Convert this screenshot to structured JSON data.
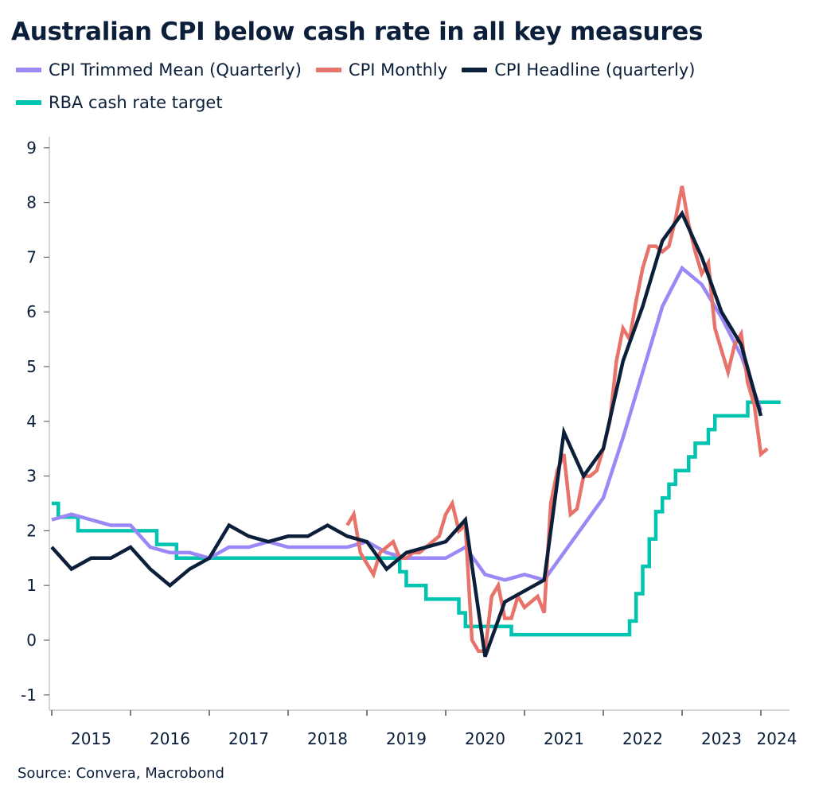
{
  "chart_data": {
    "type": "line",
    "title": "Australian CPI below cash rate in all key measures",
    "source": "Source: Convera, Macrobond",
    "xlabel": "",
    "ylabel": "",
    "ylim": [
      -1,
      9
    ],
    "yticks": [
      "-1",
      "0",
      "1",
      "2",
      "3",
      "4",
      "5",
      "6",
      "7",
      "8",
      "9"
    ],
    "xticks": [
      "2015",
      "2016",
      "2017",
      "2018",
      "2019",
      "2020",
      "2021",
      "2022",
      "2023",
      "2024"
    ],
    "grid": false,
    "legend_position": "top",
    "series": [
      {
        "name": "CPI Trimmed Mean (Quarterly)",
        "color": "#9b87f5",
        "points": [
          [
            "2014-12",
            2.2
          ],
          [
            "2015-03",
            2.3
          ],
          [
            "2015-06",
            2.2
          ],
          [
            "2015-09",
            2.1
          ],
          [
            "2015-12",
            2.1
          ],
          [
            "2016-03",
            1.7
          ],
          [
            "2016-06",
            1.6
          ],
          [
            "2016-09",
            1.6
          ],
          [
            "2016-12",
            1.5
          ],
          [
            "2017-03",
            1.7
          ],
          [
            "2017-06",
            1.7
          ],
          [
            "2017-09",
            1.8
          ],
          [
            "2017-12",
            1.7
          ],
          [
            "2018-03",
            1.7
          ],
          [
            "2018-06",
            1.7
          ],
          [
            "2018-09",
            1.7
          ],
          [
            "2018-12",
            1.8
          ],
          [
            "2019-03",
            1.6
          ],
          [
            "2019-06",
            1.5
          ],
          [
            "2019-09",
            1.5
          ],
          [
            "2019-12",
            1.5
          ],
          [
            "2020-03",
            1.7
          ],
          [
            "2020-06",
            1.2
          ],
          [
            "2020-09",
            1.1
          ],
          [
            "2020-12",
            1.2
          ],
          [
            "2021-03",
            1.1
          ],
          [
            "2021-06",
            1.6
          ],
          [
            "2021-09",
            2.1
          ],
          [
            "2021-12",
            2.6
          ],
          [
            "2022-03",
            3.7
          ],
          [
            "2022-06",
            4.9
          ],
          [
            "2022-09",
            6.1
          ],
          [
            "2022-12",
            6.8
          ],
          [
            "2023-03",
            6.5
          ],
          [
            "2023-06",
            5.9
          ],
          [
            "2023-09",
            5.2
          ],
          [
            "2023-12",
            4.2
          ]
        ]
      },
      {
        "name": "CPI Monthly",
        "color": "#e8736a",
        "points": [
          [
            "2018-09",
            2.1
          ],
          [
            "2018-10",
            2.3
          ],
          [
            "2018-11",
            1.6
          ],
          [
            "2018-12",
            1.4
          ],
          [
            "2019-01",
            1.2
          ],
          [
            "2019-02",
            1.6
          ],
          [
            "2019-03",
            1.7
          ],
          [
            "2019-04",
            1.8
          ],
          [
            "2019-05",
            1.5
          ],
          [
            "2019-06",
            1.5
          ],
          [
            "2019-07",
            1.6
          ],
          [
            "2019-08",
            1.6
          ],
          [
            "2019-09",
            1.7
          ],
          [
            "2019-10",
            1.8
          ],
          [
            "2019-11",
            1.9
          ],
          [
            "2019-12",
            2.3
          ],
          [
            "2020-01",
            2.5
          ],
          [
            "2020-02",
            2.0
          ],
          [
            "2020-03",
            2.1
          ],
          [
            "2020-04",
            0.0
          ],
          [
            "2020-05",
            -0.2
          ],
          [
            "2020-06",
            -0.2
          ],
          [
            "2020-07",
            0.8
          ],
          [
            "2020-08",
            1.0
          ],
          [
            "2020-09",
            0.4
          ],
          [
            "2020-10",
            0.4
          ],
          [
            "2020-11",
            0.8
          ],
          [
            "2020-12",
            0.6
          ],
          [
            "2021-01",
            0.7
          ],
          [
            "2021-02",
            0.8
          ],
          [
            "2021-03",
            0.5
          ],
          [
            "2021-04",
            2.5
          ],
          [
            "2021-05",
            3.1
          ],
          [
            "2021-06",
            3.4
          ],
          [
            "2021-07",
            2.3
          ],
          [
            "2021-08",
            2.4
          ],
          [
            "2021-09",
            3.0
          ],
          [
            "2021-10",
            3.0
          ],
          [
            "2021-11",
            3.1
          ],
          [
            "2021-12",
            3.5
          ],
          [
            "2022-01",
            4.0
          ],
          [
            "2022-02",
            5.1
          ],
          [
            "2022-03",
            5.7
          ],
          [
            "2022-04",
            5.5
          ],
          [
            "2022-05",
            6.2
          ],
          [
            "2022-06",
            6.8
          ],
          [
            "2022-07",
            7.2
          ],
          [
            "2022-08",
            7.2
          ],
          [
            "2022-09",
            7.1
          ],
          [
            "2022-10",
            7.2
          ],
          [
            "2022-11",
            7.7
          ],
          [
            "2022-12",
            8.3
          ],
          [
            "2023-01",
            7.6
          ],
          [
            "2023-02",
            7.1
          ],
          [
            "2023-03",
            6.7
          ],
          [
            "2023-04",
            6.9
          ],
          [
            "2023-05",
            5.7
          ],
          [
            "2023-06",
            5.3
          ],
          [
            "2023-07",
            4.9
          ],
          [
            "2023-08",
            5.4
          ],
          [
            "2023-09",
            5.6
          ],
          [
            "2023-10",
            4.7
          ],
          [
            "2023-11",
            4.3
          ],
          [
            "2023-12",
            3.4
          ],
          [
            "2024-01",
            3.5
          ]
        ]
      },
      {
        "name": "CPI Headline (quarterly)",
        "color": "#0b1f3a",
        "points": [
          [
            "2014-12",
            1.7
          ],
          [
            "2015-03",
            1.3
          ],
          [
            "2015-06",
            1.5
          ],
          [
            "2015-09",
            1.5
          ],
          [
            "2015-12",
            1.7
          ],
          [
            "2016-03",
            1.3
          ],
          [
            "2016-06",
            1.0
          ],
          [
            "2016-09",
            1.3
          ],
          [
            "2016-12",
            1.5
          ],
          [
            "2017-03",
            2.1
          ],
          [
            "2017-06",
            1.9
          ],
          [
            "2017-09",
            1.8
          ],
          [
            "2017-12",
            1.9
          ],
          [
            "2018-03",
            1.9
          ],
          [
            "2018-06",
            2.1
          ],
          [
            "2018-09",
            1.9
          ],
          [
            "2018-12",
            1.8
          ],
          [
            "2019-03",
            1.3
          ],
          [
            "2019-06",
            1.6
          ],
          [
            "2019-09",
            1.7
          ],
          [
            "2019-12",
            1.8
          ],
          [
            "2020-03",
            2.2
          ],
          [
            "2020-06",
            -0.3
          ],
          [
            "2020-09",
            0.7
          ],
          [
            "2020-12",
            0.9
          ],
          [
            "2021-03",
            1.1
          ],
          [
            "2021-06",
            3.8
          ],
          [
            "2021-09",
            3.0
          ],
          [
            "2021-12",
            3.5
          ],
          [
            "2022-03",
            5.1
          ],
          [
            "2022-06",
            6.1
          ],
          [
            "2022-09",
            7.3
          ],
          [
            "2022-12",
            7.8
          ],
          [
            "2023-03",
            7.0
          ],
          [
            "2023-06",
            6.0
          ],
          [
            "2023-09",
            5.4
          ],
          [
            "2023-12",
            4.1
          ]
        ]
      },
      {
        "name": "RBA cash rate target",
        "color": "#00c4b0",
        "step": true,
        "points": [
          [
            "2015-01",
            2.5
          ],
          [
            "2015-02",
            2.25
          ],
          [
            "2015-05",
            2.0
          ],
          [
            "2016-05",
            1.75
          ],
          [
            "2016-08",
            1.5
          ],
          [
            "2019-06",
            1.25
          ],
          [
            "2019-07",
            1.0
          ],
          [
            "2019-10",
            0.75
          ],
          [
            "2020-03",
            0.5
          ],
          [
            "2020-04",
            0.25
          ],
          [
            "2020-11",
            0.1
          ],
          [
            "2022-05",
            0.35
          ],
          [
            "2022-06",
            0.85
          ],
          [
            "2022-07",
            1.35
          ],
          [
            "2022-08",
            1.85
          ],
          [
            "2022-09",
            2.35
          ],
          [
            "2022-10",
            2.6
          ],
          [
            "2022-11",
            2.85
          ],
          [
            "2022-12",
            3.1
          ],
          [
            "2023-02",
            3.35
          ],
          [
            "2023-03",
            3.6
          ],
          [
            "2023-05",
            3.85
          ],
          [
            "2023-06",
            4.1
          ],
          [
            "2023-11",
            4.35
          ],
          [
            "2024-03",
            4.35
          ]
        ]
      }
    ]
  }
}
